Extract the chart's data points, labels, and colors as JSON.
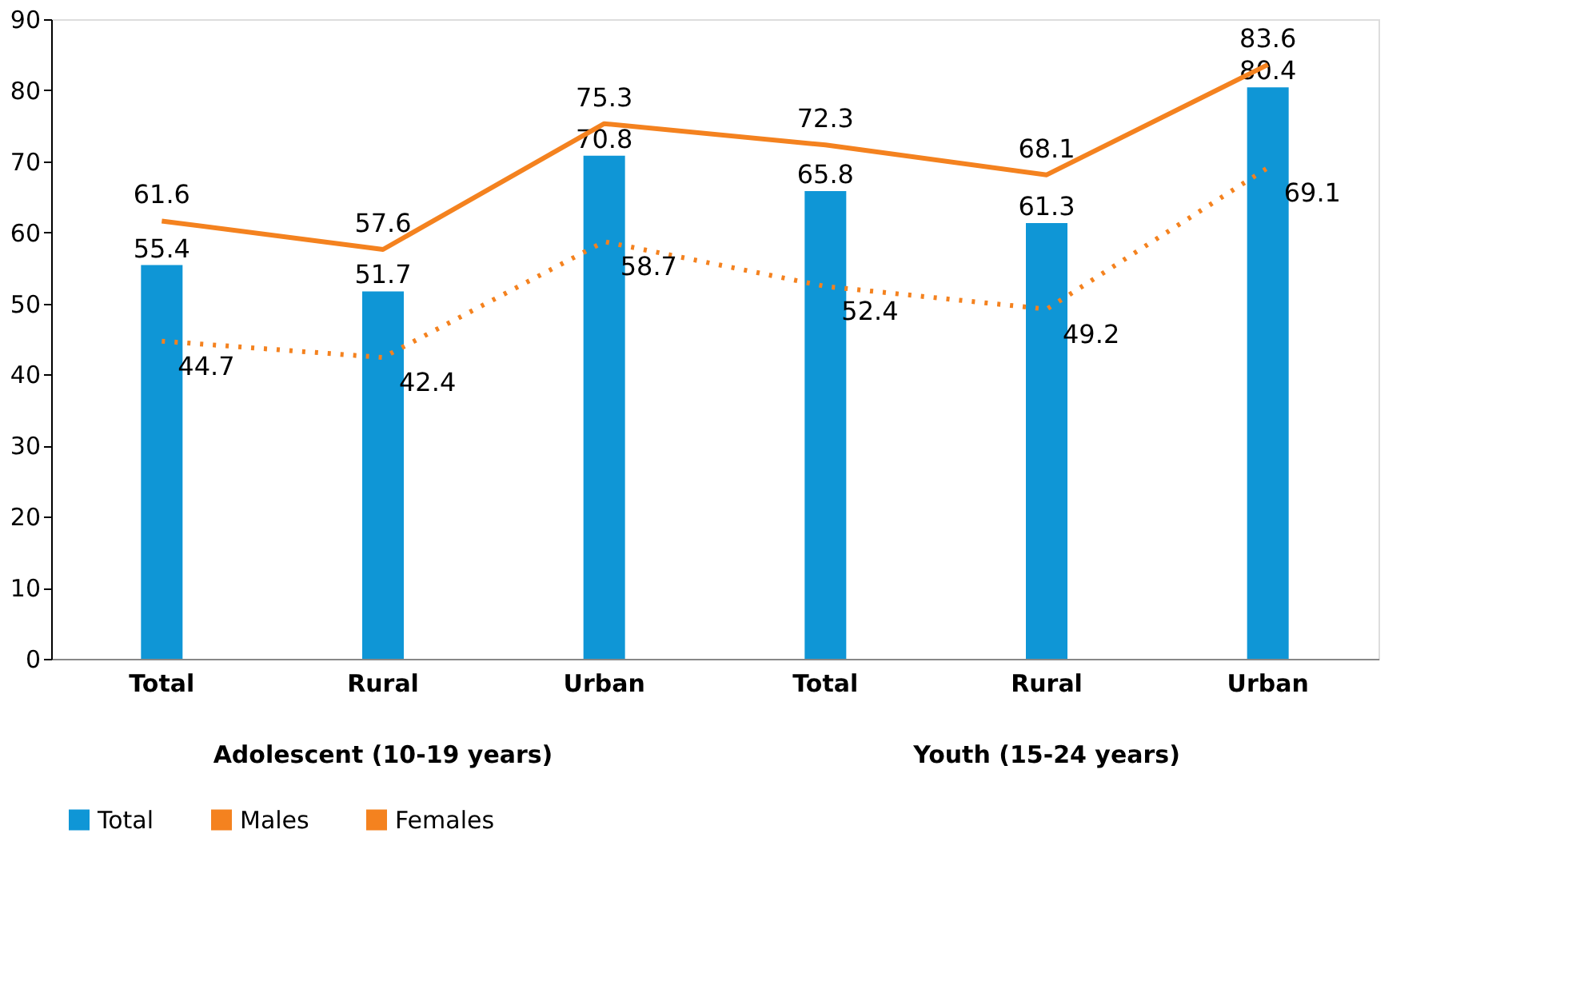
{
  "chart_data": {
    "type": "bar",
    "categories": [
      "Total",
      "Rural",
      "Urban",
      "Total",
      "Rural",
      "Urban"
    ],
    "series": [
      {
        "name": "Total",
        "color": "#0f96d6",
        "values": [
          55.4,
          51.7,
          70.8,
          65.8,
          61.3,
          80.4
        ]
      },
      {
        "name": "Males",
        "type": "line",
        "color": "#f4821f",
        "line_style": "solid",
        "values": [
          61.6,
          57.6,
          75.3,
          72.3,
          68.1,
          83.6
        ]
      },
      {
        "name": "Females",
        "type": "line",
        "color": "#f4821f",
        "line_style": "dotted",
        "values": [
          44.7,
          42.4,
          58.7,
          52.4,
          49.2,
          69.1
        ]
      }
    ],
    "annotations": [
      "Adolescent (10-19 years)",
      "Youth (15-24 years)"
    ],
    "ylim": [
      0,
      90
    ],
    "yticks": [
      0,
      10,
      20,
      30,
      40,
      50,
      60,
      70,
      80,
      90
    ],
    "grid": false,
    "legend": "bottom",
    "data_labels": true
  }
}
